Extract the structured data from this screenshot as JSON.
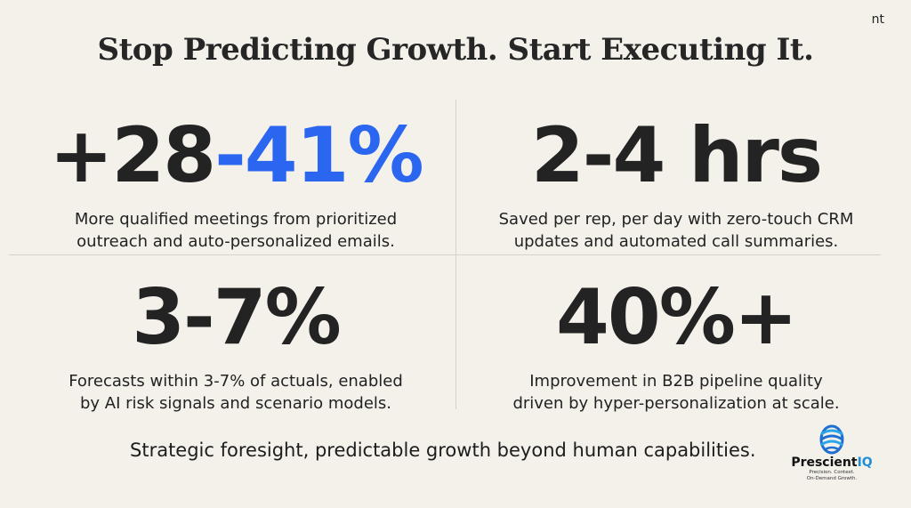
{
  "corner_tag": "nt",
  "headline": "Stop Predicting Growth. Start Executing It.",
  "stats": [
    {
      "value_prefix": "+28",
      "value_accent": "-41%",
      "desc_line1": "More qualified meetings from prioritized",
      "desc_line2": "outreach and auto-personalized emails."
    },
    {
      "value": "2-4 hrs",
      "desc_line1": "Saved per rep, per day with zero-touch CRM",
      "desc_line2": "updates and automated call summaries."
    },
    {
      "value": "3-7%",
      "desc_line1": "Forecasts within 3-7% of actuals, enabled",
      "desc_line2": "by AI risk signals and scenario models."
    },
    {
      "value": "40%+",
      "desc_line1": "Improvement in B2B pipeline quality",
      "desc_line2": "driven by hyper-personalization at scale."
    }
  ],
  "tagline": "Strategic foresight, predictable growth beyond human capabilities.",
  "logo": {
    "brand_main": "Prescient",
    "brand_accent": "IQ",
    "slogan_line1": "Precision. Context.",
    "slogan_line2": "On-Demand Growth.",
    "icon": "globe-swirl-icon"
  },
  "colors": {
    "background": "#f4f1eb",
    "accent_blue": "#2a66f0",
    "text": "#232323"
  }
}
